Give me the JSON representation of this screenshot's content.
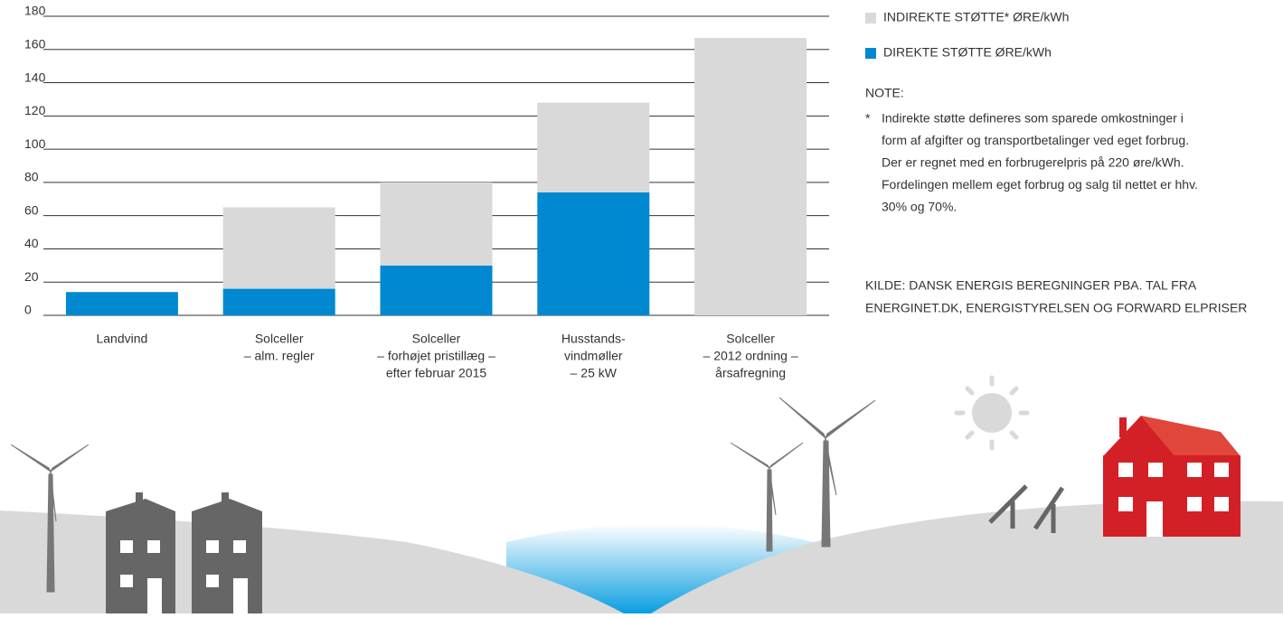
{
  "chart_data": {
    "type": "stacked-bar",
    "categories": [
      [
        "Landvind"
      ],
      [
        "Solceller",
        "– alm. regler"
      ],
      [
        "Solceller",
        "– forhøjet pristillæg –",
        "efter februar 2015"
      ],
      [
        "Husstands-",
        "vindmøller",
        "– 25 kW"
      ],
      [
        "Solceller",
        "– 2012 ordning –",
        "årsafregning"
      ]
    ],
    "series": [
      {
        "name": "DIREKTE STØTTE ØRE/kWh",
        "color": "#0088d1",
        "values": [
          14,
          16,
          30,
          74,
          0
        ]
      },
      {
        "name": "INDIREKTE STØTTE* ØRE/kWh",
        "color": "#d9d9d9",
        "values": [
          0,
          49,
          50,
          54,
          167
        ]
      }
    ],
    "ylim": [
      0,
      180
    ],
    "yticks": [
      0,
      20,
      40,
      60,
      80,
      100,
      120,
      140,
      160,
      180
    ],
    "grid": true,
    "note_title": "NOTE:",
    "note_marker": "*",
    "note_lines": [
      "Indirekte støtte defineres som sparede omkostninger i",
      "form af afgifter og transportbetalinger ved eget forbrug.",
      "Der er regnet med en forbrugerelpris på 220 øre/kWh.",
      "Fordelingen mellem eget forbrug og salg til nettet er hhv.",
      "30% og 70%."
    ],
    "source_lines": [
      "KILDE: DANSK ENERGIS BEREGNINGER PBA. TAL FRA",
      "ENERGINET.DK, ENERGISTYRELSEN OG FORWARD ELPRISER"
    ]
  }
}
